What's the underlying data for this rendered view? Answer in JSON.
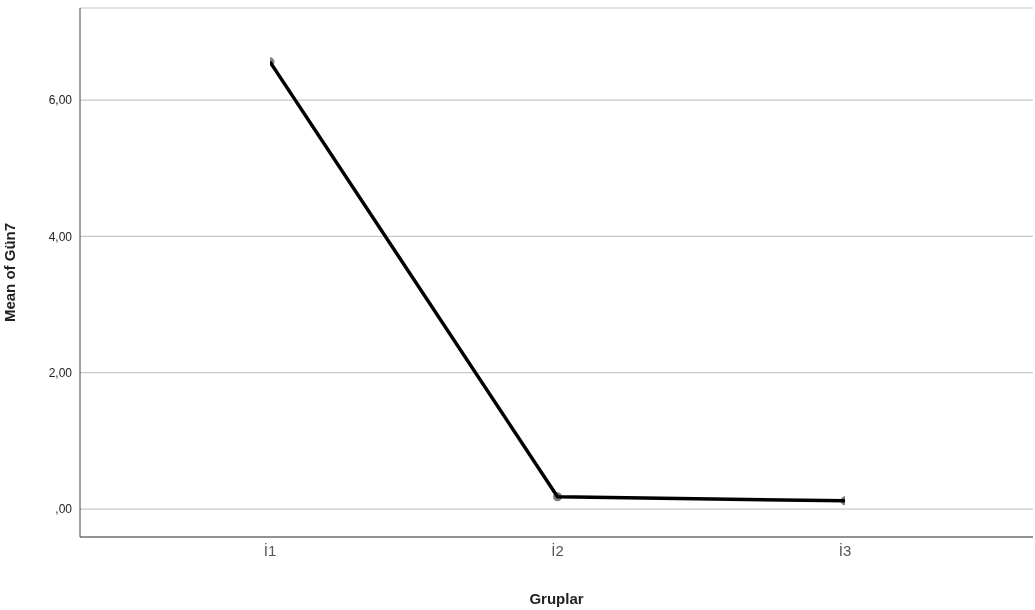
{
  "chart_data": {
    "type": "line",
    "xlabel": "Gruplar",
    "ylabel": "Mean of Gün7",
    "categories": [
      "İ1",
      "İ2",
      "İ3"
    ],
    "series": [
      {
        "color": "#000000",
        "values": [
          6.56,
          0.18,
          0.12
        ]
      }
    ],
    "ylim": [
      -0.41,
      7.35
    ],
    "yticks": [
      {
        "value": 0,
        "label": ",00"
      },
      {
        "value": 2,
        "label": "2,00"
      },
      {
        "value": 4,
        "label": "4,00"
      },
      {
        "value": 6,
        "label": "6,00"
      }
    ],
    "grid": "y",
    "marker": "circle",
    "line_style": "solid",
    "legend": false
  }
}
